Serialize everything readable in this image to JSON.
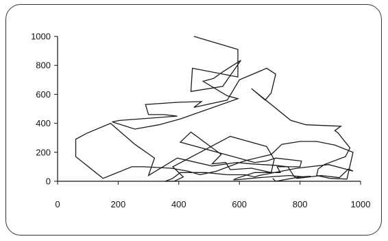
{
  "chart_data": {
    "type": "line",
    "title": "",
    "xlabel": "",
    "ylabel": "",
    "xlim": [
      0,
      1000
    ],
    "ylim": [
      0,
      1000
    ],
    "x_ticks": [
      0,
      200,
      400,
      600,
      800,
      1000
    ],
    "y_ticks": [
      0,
      200,
      400,
      600,
      800,
      1000
    ],
    "x_tick_labels": [
      "0",
      "200",
      "400",
      "600",
      "800",
      "1000"
    ],
    "y_tick_labels": [
      "0",
      "200",
      "400",
      "600",
      "800",
      "1000"
    ],
    "grid": false,
    "legend": "none",
    "line_color": "#1a1a1a",
    "series": [
      {
        "x": [
          450,
          595,
          595,
          445,
          440,
          545,
          605,
          545,
          515,
          480,
          560,
          595,
          405,
          335,
          255,
          180,
          205,
          395,
          350,
          300,
          290,
          395,
          475,
          450,
          560,
          600,
          690,
          720,
          705,
          685,
          640,
          770,
          820,
          880,
          935,
          915,
          925,
          965,
          950,
          880,
          860,
          855,
          900,
          955,
          975,
          915,
          855,
          800,
          740,
          705,
          625,
          595,
          525,
          470,
          430,
          375,
          285,
          245,
          150,
          60,
          60,
          95,
          175,
          255,
          320,
          300,
          395,
          510,
          590,
          640,
          720,
          760,
          780,
          790,
          870,
          930,
          960,
          975,
          895,
          790,
          665,
          650,
          620,
          560,
          490,
          470,
          405,
          380,
          355,
          385,
          415,
          380,
          570,
          690,
          715,
          705,
          640,
          570,
          555,
          510,
          540,
          440,
          405,
          650,
          690,
          720,
          805,
          800,
          725,
          735,
          650,
          590,
          580,
          590,
          665,
          765,
          815,
          835,
          800,
          720,
          710
        ],
        "y": [
          1000,
          910,
          720,
          780,
          620,
          655,
          835,
          755,
          710,
          690,
          590,
          570,
          430,
          390,
          360,
          410,
          420,
          450,
          460,
          460,
          530,
          545,
          550,
          510,
          560,
          700,
          780,
          740,
          610,
          560,
          640,
          420,
          390,
          385,
          380,
          350,
          335,
          230,
          170,
          115,
          85,
          40,
          20,
          15,
          200,
          250,
          275,
          275,
          255,
          185,
          145,
          125,
          70,
          45,
          70,
          90,
          100,
          100,
          20,
          170,
          290,
          330,
          400,
          255,
          160,
          40,
          160,
          105,
          130,
          120,
          110,
          100,
          35,
          20,
          40,
          25,
          85,
          70,
          115,
          90,
          40,
          30,
          45,
          45,
          60,
          60,
          60,
          20,
          0,
          0,
          30,
          100,
          310,
          240,
          150,
          60,
          90,
          80,
          130,
          120,
          185,
          340,
          270,
          130,
          140,
          160,
          140,
          100,
          100,
          60,
          60,
          20,
          10,
          10,
          25,
          40,
          30,
          35,
          30,
          0,
          20
        ]
      }
    ]
  }
}
